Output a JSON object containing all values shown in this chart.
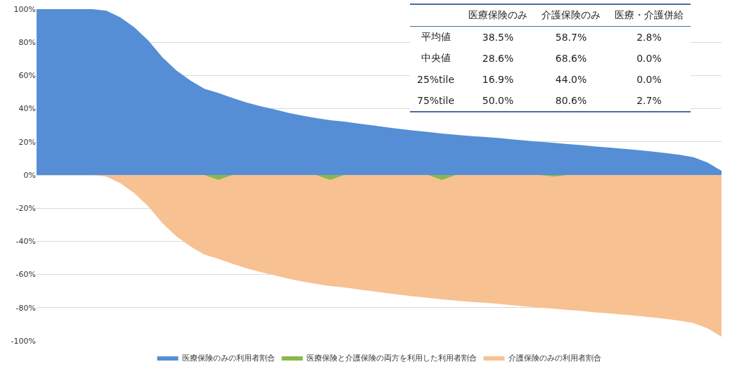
{
  "chart_data": {
    "type": "area",
    "categories": [
      null,
      null,
      null,
      null,
      null,
      null,
      null,
      null,
      null,
      null,
      null,
      null,
      null,
      null,
      null,
      null,
      null,
      null,
      null,
      null,
      null,
      null,
      null,
      null,
      null,
      null,
      null,
      null,
      null,
      null,
      null,
      null,
      null,
      null,
      null,
      null,
      null,
      null,
      null,
      null,
      null,
      null,
      null,
      null,
      null,
      null,
      null,
      null,
      null,
      null
    ],
    "series": [
      {
        "name": "医療保険のみの利用者割合",
        "color": "#558ed5",
        "values": [
          100,
          100,
          100,
          100,
          100,
          99,
          95,
          89,
          81,
          71,
          63,
          57,
          52,
          49.5,
          46.5,
          43.7,
          41.5,
          39.6,
          37.5,
          35.8,
          34.3,
          33.1,
          32.2,
          31,
          30,
          28.8,
          27.8,
          26.8,
          26,
          25,
          24.3,
          23.5,
          23,
          22.3,
          21.5,
          20.8,
          20,
          19.4,
          18.6,
          18,
          17.2,
          16.5,
          15.8,
          15,
          14.2,
          13.2,
          12.2,
          10.7,
          7.5,
          2.5
        ]
      },
      {
        "name": "医療保険と介護保険の両方を利用した利用者割合",
        "color": "#8db74a",
        "values": [
          0,
          0,
          0,
          0,
          0,
          0,
          0,
          0,
          0,
          0,
          0,
          0,
          0,
          -3,
          0,
          0,
          0,
          0,
          0,
          0,
          0,
          -3,
          0,
          0,
          0,
          0,
          0,
          0,
          0,
          -3,
          0,
          0,
          0,
          0,
          0,
          0,
          0,
          -1,
          0,
          0,
          0,
          0,
          0,
          0,
          0,
          0,
          0,
          0,
          0,
          0
        ]
      },
      {
        "name": "介護保険のみの利用者割合",
        "color": "#f8c192",
        "values": [
          0,
          0,
          0,
          0,
          0,
          -1,
          -5,
          -11,
          -19,
          -29,
          -37,
          -43,
          -48,
          -50.5,
          -53.5,
          -56.3,
          -58.5,
          -60.4,
          -62.5,
          -64.2,
          -65.7,
          -66.9,
          -67.8,
          -69,
          -70,
          -71.2,
          -72.2,
          -73.2,
          -74,
          -75,
          -75.7,
          -76.5,
          -77,
          -77.7,
          -78.5,
          -79.2,
          -80,
          -80.6,
          -81.4,
          -82,
          -82.8,
          -83.5,
          -84.2,
          -85,
          -85.8,
          -86.8,
          -87.8,
          -89.3,
          -92.5,
          -97.5
        ]
      }
    ],
    "ylim": [
      -100,
      100
    ],
    "yticks": [
      {
        "value": -100,
        "label": "-100%"
      },
      {
        "value": -80,
        "label": "-80%"
      },
      {
        "value": -60,
        "label": "-60%"
      },
      {
        "value": -40,
        "label": "-40%"
      },
      {
        "value": -20,
        "label": "-20%"
      },
      {
        "value": 0,
        "label": "0%"
      },
      {
        "value": 20,
        "label": "20%"
      },
      {
        "value": 40,
        "label": "40%"
      },
      {
        "value": 60,
        "label": "60%"
      },
      {
        "value": 80,
        "label": "80%"
      },
      {
        "value": 100,
        "label": "100%"
      }
    ],
    "grid": "y",
    "legend": "bottom",
    "tick_labels": "y",
    "annotations": [
      "医療保険のみ",
      "介護保険のみ",
      "医療・介護併給",
      "平均値",
      "38.5%",
      "58.7%",
      "2.8%",
      "中央値",
      "28.6%",
      "68.6%",
      "0.0%",
      "25%tile",
      "16.9%",
      "44.0%",
      "0.0%",
      "75%tile",
      "50.0%",
      "80.6%",
      "2.7%"
    ]
  }
}
